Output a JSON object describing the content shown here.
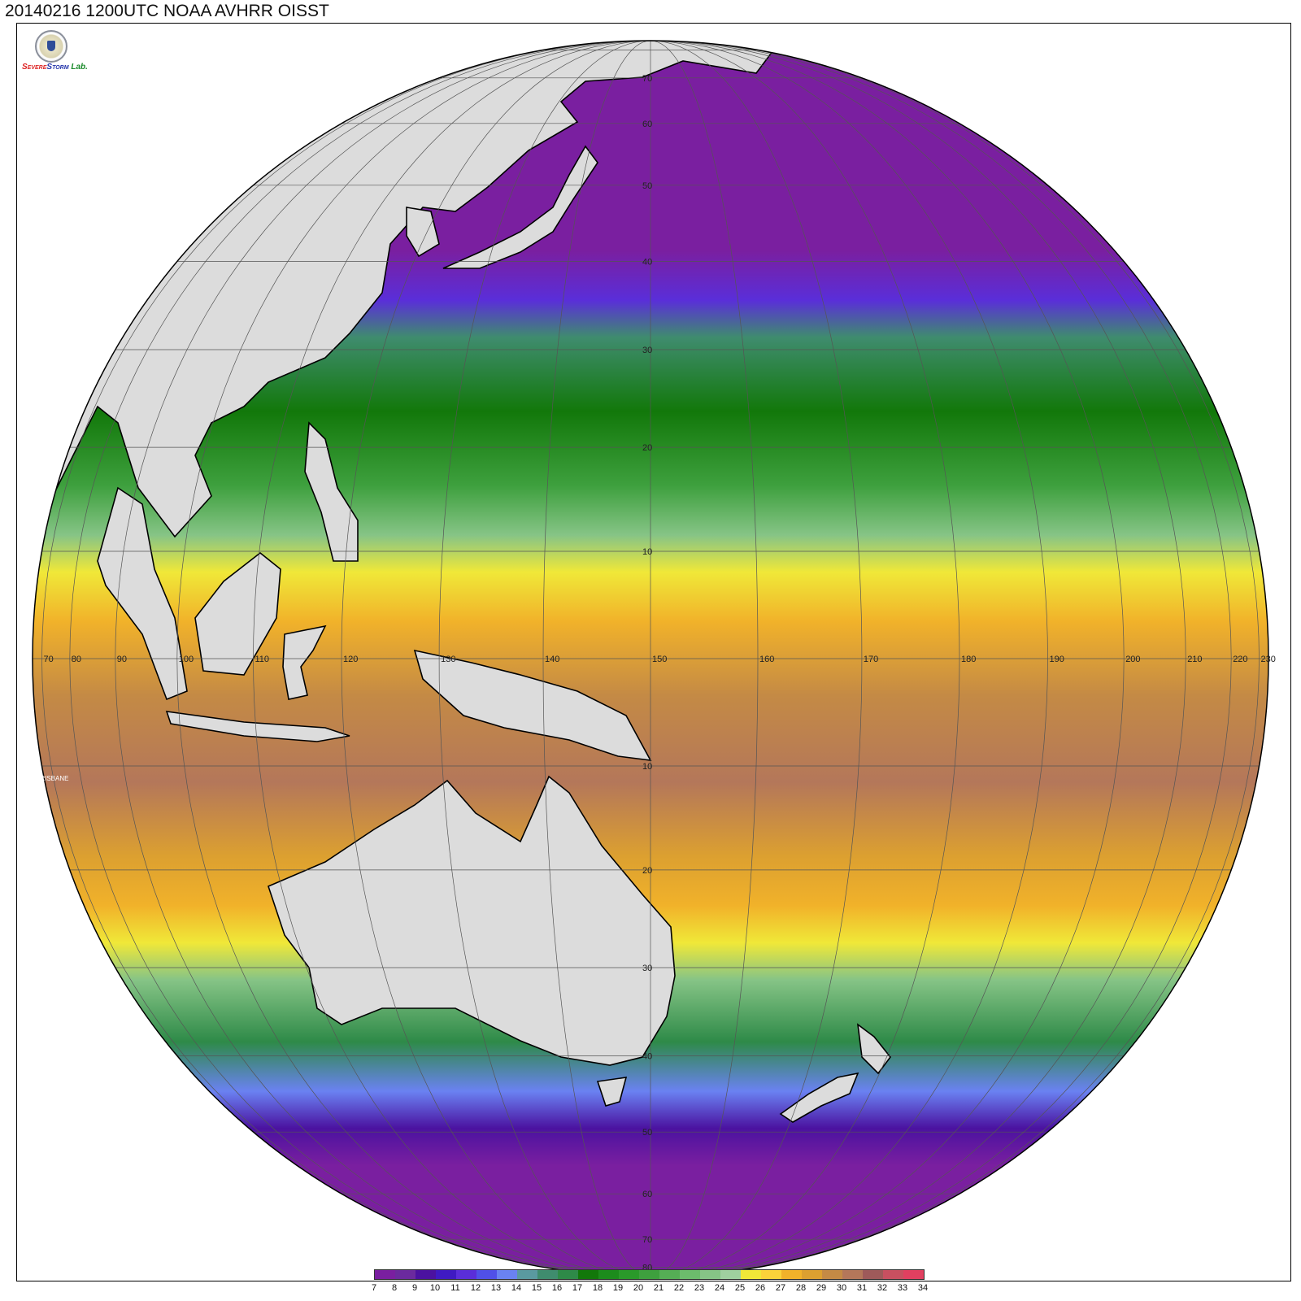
{
  "title": "20140216 1200UTC NOAA AVHRR OISST",
  "logo": {
    "name": "severe-storm-lab-logo",
    "lines": [
      "S",
      "EVERE",
      "S",
      "TORM",
      "Lab."
    ]
  },
  "map": {
    "projection": "orthographic",
    "center_lon": 150,
    "center_lat": 0,
    "variable": "sea surface temperature",
    "lon_labels": [
      "70",
      "80",
      "90",
      "100",
      "110",
      "120",
      "130",
      "140",
      "150",
      "160",
      "170",
      "180",
      "190",
      "200",
      "210",
      "220",
      "230"
    ],
    "lat_labels": [
      "70",
      "60",
      "50",
      "40",
      "30",
      "20",
      "10",
      "10",
      "20",
      "30",
      "40",
      "50",
      "60",
      "70",
      "80"
    ],
    "place_label": "BRISBANE",
    "land_color": "#dcdcdc",
    "grid_color": "#555555"
  },
  "colorbar": {
    "labels": [
      "7",
      "8",
      "9",
      "10",
      "11",
      "12",
      "13",
      "14",
      "15",
      "16",
      "17",
      "18",
      "19",
      "20",
      "21",
      "22",
      "23",
      "24",
      "25",
      "26",
      "27",
      "28",
      "29",
      "30",
      "31",
      "32",
      "33",
      "34"
    ],
    "colors": [
      "#7a1fa0",
      "#6b2a9e",
      "#4b12a0",
      "#3f1ac2",
      "#5a2ed9",
      "#5050e8",
      "#6a82f2",
      "#5a9aa0",
      "#3f8c6e",
      "#2e8a48",
      "#12780a",
      "#1c8c1c",
      "#2a9a2a",
      "#3ea03e",
      "#55ae55",
      "#6cbc6c",
      "#86c486",
      "#9fd09f",
      "#f0e838",
      "#fbd33a",
      "#f1b22a",
      "#dca030",
      "#c48a45",
      "#b4775a",
      "#9e5a5a",
      "#c85060",
      "#e14060"
    ]
  }
}
